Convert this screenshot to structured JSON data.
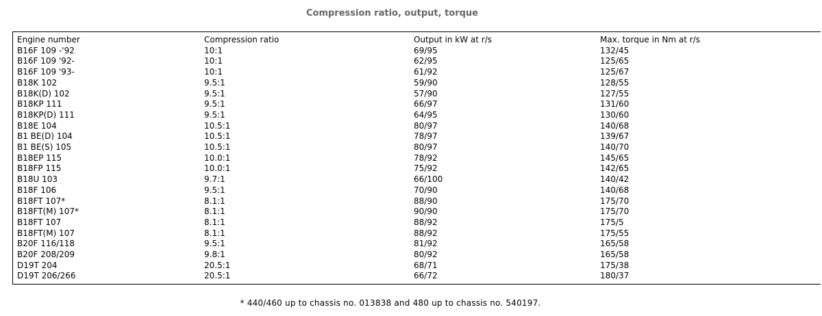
{
  "title": "Compression ratio, output, torque",
  "table": {
    "headers": [
      "Engine number",
      "Compression ratio",
      "Output in kW at r/s",
      "Max. torque in Nm at r/s"
    ],
    "rows": [
      [
        "B16F 109 -'92",
        "10:1",
        "69/95",
        "132/45"
      ],
      [
        "B16F 109 '92-",
        "10:1",
        "62/95",
        "125/65"
      ],
      [
        "B16F 109 '93-",
        "10:1",
        "61/92",
        "125/67"
      ],
      [
        "B18K 102",
        "9.5:1",
        "59/90",
        "128/55"
      ],
      [
        "B18K(D) 102",
        "9.5:1",
        "57/90",
        "127/55"
      ],
      [
        "B18KP 111",
        "9.5:1",
        "66/97",
        "131/60"
      ],
      [
        "B18KP(D) 111",
        "9.5:1",
        "64/95",
        "130/60"
      ],
      [
        "B18E 104",
        "10.5:1",
        "80/97",
        "140/68"
      ],
      [
        "B1 BE(D) 104",
        "10.5:1",
        "78/97",
        "139/67"
      ],
      [
        "B1 BE(S) 105",
        "10.5:1",
        "80/97",
        "140/70"
      ],
      [
        "B18EP 115",
        "10.0:1",
        "78/92",
        "145/65"
      ],
      [
        "B18FP 115",
        "10.0:1",
        "75/92",
        "142/65"
      ],
      [
        "B18U 103",
        "9.7:1",
        "66/100",
        "140/42"
      ],
      [
        "B18F 106",
        "9.5:1",
        "70/90",
        "140/68"
      ],
      [
        "B18FT 107*",
        "8.1:1",
        "88/90",
        "175/70"
      ],
      [
        "B18FT(M) 107*",
        "8.1:1",
        "90/90",
        "175/70"
      ],
      [
        "B18FT 107",
        "8.1:1",
        "88/92",
        "175/5"
      ],
      [
        "B18FT(M) 107",
        "8.1:1",
        "88/92",
        "175/55"
      ],
      [
        "B20F 116/118",
        "9.5:1",
        "81/92",
        "165/58"
      ],
      [
        "B20F 208/209",
        "9.8:1",
        "80/92",
        "165/58"
      ],
      [
        "D19T 204",
        "20.5:1",
        "68/71",
        "175/38"
      ],
      [
        "D19T 206/266",
        "20.5:1",
        "66/72",
        "180/37"
      ]
    ]
  },
  "footnote": "* 440/460 up to chassis no. 013838 and 480 up to chassis no. 540197."
}
